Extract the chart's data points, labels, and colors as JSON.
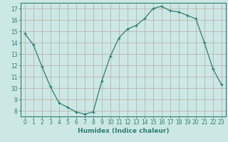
{
  "x": [
    0,
    1,
    2,
    3,
    4,
    5,
    6,
    7,
    8,
    9,
    10,
    11,
    12,
    13,
    14,
    15,
    16,
    17,
    18,
    19,
    20,
    21,
    22,
    23
  ],
  "y": [
    14.8,
    13.8,
    11.9,
    10.1,
    8.7,
    8.3,
    7.9,
    7.7,
    7.9,
    10.6,
    12.8,
    14.4,
    15.2,
    15.5,
    16.1,
    17.0,
    17.2,
    16.8,
    16.7,
    16.4,
    16.1,
    14.0,
    11.7,
    10.3
  ],
  "xlabel": "Humidex (Indice chaleur)",
  "xlim": [
    -0.5,
    23.5
  ],
  "ylim": [
    7.5,
    17.5
  ],
  "yticks": [
    8,
    9,
    10,
    11,
    12,
    13,
    14,
    15,
    16,
    17
  ],
  "xticks": [
    0,
    1,
    2,
    3,
    4,
    5,
    6,
    7,
    8,
    9,
    10,
    11,
    12,
    13,
    14,
    15,
    16,
    17,
    18,
    19,
    20,
    21,
    22,
    23
  ],
  "line_color": "#2e7d6e",
  "marker": "+",
  "bg_color": "#cce8e4",
  "grid_color": "#b8a8a8",
  "axis_color": "#2e7d6e",
  "label_color": "#2e7d6e",
  "tick_font_size": 5.5,
  "xlabel_font_size": 6.5
}
